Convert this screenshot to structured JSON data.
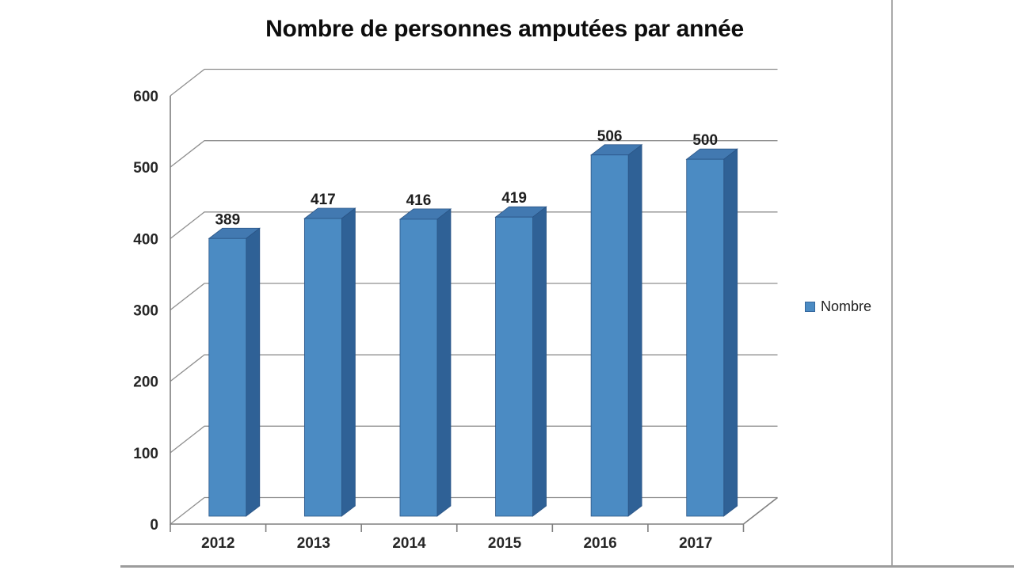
{
  "frame": {
    "right_border_color": "#a9a9a9",
    "bottom_border_color": "#9c9c9c"
  },
  "legend": {
    "label": "Nombre",
    "swatch_color": "#4b8bc3"
  },
  "chart_data": {
    "type": "bar",
    "style": "3d-column",
    "title": "Nombre de personnes amputées par année",
    "categories": [
      "2012",
      "2013",
      "2014",
      "2015",
      "2016",
      "2017"
    ],
    "series": [
      {
        "name": "Nombre",
        "values": [
          389,
          417,
          416,
          419,
          506,
          500
        ]
      }
    ],
    "xlabel": "",
    "ylabel": "",
    "ylim": [
      0,
      600
    ],
    "y_ticks": [
      0,
      100,
      200,
      300,
      400,
      500,
      600
    ],
    "grid": true,
    "data_labels": true,
    "legend_position": "right-middle",
    "colors": {
      "bar_front": "#4b8bc3",
      "bar_side": "#2f6196",
      "bar_top": "#4279b1",
      "bar_edge": "#2b5586",
      "gridline": "#8f8f8f",
      "axis": "#7f7f7f",
      "text": "#262626",
      "title": "#0d0d0d",
      "background": "#ffffff"
    }
  }
}
